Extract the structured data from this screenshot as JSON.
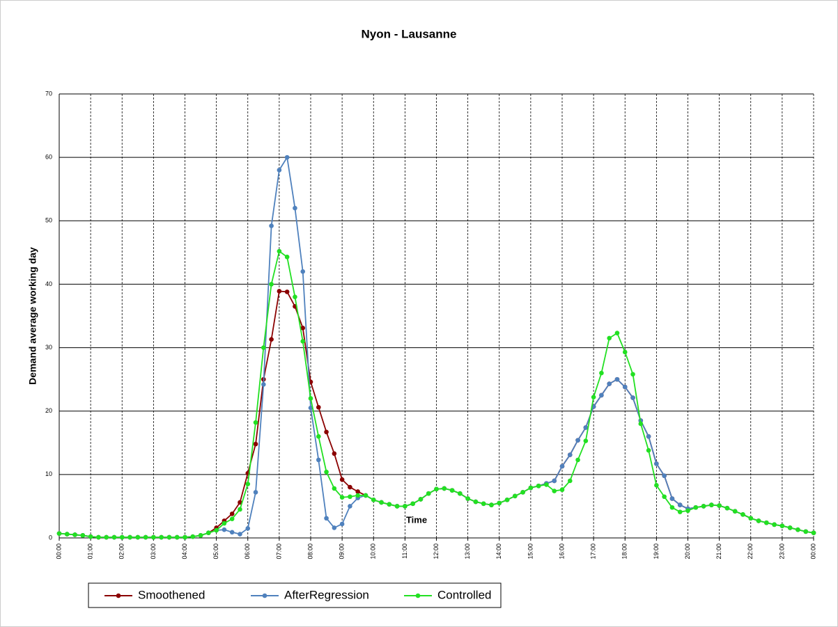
{
  "chart_data": {
    "type": "line",
    "title": "Nyon - Lausanne",
    "x_label": "Time",
    "y_label": "Demand  average working day",
    "categories": [
      "00:00",
      null,
      null,
      null,
      "01:00",
      null,
      null,
      null,
      "02:00",
      null,
      null,
      null,
      "03:00",
      null,
      null,
      null,
      "04:00",
      null,
      null,
      null,
      "05:00",
      null,
      null,
      null,
      "06:00",
      null,
      null,
      null,
      "07:00",
      null,
      null,
      null,
      "08:00",
      null,
      null,
      null,
      "09:00",
      null,
      null,
      null,
      "10:00",
      null,
      null,
      null,
      "11:00",
      null,
      null,
      null,
      "12:00",
      null,
      null,
      null,
      "13:00",
      null,
      null,
      null,
      "14:00",
      null,
      null,
      null,
      "15:00",
      null,
      null,
      null,
      "16:00",
      null,
      null,
      null,
      "17:00",
      null,
      null,
      null,
      "18:00",
      null,
      null,
      null,
      "19:00",
      null,
      null,
      null,
      "20:00",
      null,
      null,
      null,
      "21:00",
      null,
      null,
      null,
      "22:00",
      null,
      null,
      null,
      "23:00",
      null,
      null,
      null,
      "00:00"
    ],
    "series": [
      {
        "name": "Smoothened",
        "color": "#8b0000",
        "values": [
          0.7,
          0.6,
          0.5,
          0.4,
          0.2,
          0.1,
          0.1,
          0.1,
          0.1,
          0.1,
          0.1,
          0.1,
          0.1,
          0.1,
          0.1,
          0.1,
          0.1,
          0.2,
          0.4,
          0.8,
          1.6,
          2.7,
          3.8,
          5.6,
          10.2,
          14.8,
          25,
          31.3,
          38.9,
          38.8,
          36.5,
          33.1,
          24.6,
          20.6,
          16.7,
          13.3,
          9.2,
          8,
          7.3,
          6.7,
          6.0,
          5.6,
          5.3,
          5.0,
          5.0,
          5.4,
          6.1,
          7.0,
          7.7,
          7.8,
          7.5,
          7.0,
          6.2,
          5.7,
          5.4,
          5.2,
          5.5,
          6.0,
          6.6,
          7.2,
          7.9,
          8.2,
          8.6,
          9.0,
          11.3,
          13.1,
          15.4,
          17.4,
          20.7,
          22.5,
          24.3,
          25.0,
          23.8,
          22.1,
          18.5,
          16.0,
          11.7,
          9.8,
          6.2,
          5.2,
          4.6,
          4.8,
          5.0,
          5.2,
          5.1,
          4.7,
          4.2,
          3.7,
          3.1,
          2.7,
          2.4,
          2.1,
          1.9,
          1.6,
          1.3,
          1.0,
          0.8
        ]
      },
      {
        "name": "AfterRegression",
        "color": "#4f81bd",
        "values": [
          0.7,
          0.6,
          0.5,
          0.4,
          0.2,
          0.1,
          0.1,
          0.1,
          0.1,
          0.1,
          0.1,
          0.1,
          0.1,
          0.1,
          0.1,
          0.1,
          0.1,
          0.2,
          0.4,
          0.8,
          1.2,
          1.3,
          0.9,
          0.6,
          1.5,
          7.2,
          24.2,
          49.2,
          58,
          60,
          52,
          42,
          20.5,
          12.3,
          3.1,
          1.6,
          2.2,
          5.0,
          6.3,
          6.7,
          6.0,
          5.6,
          5.3,
          5.0,
          5.0,
          5.4,
          6.1,
          7.0,
          7.7,
          7.8,
          7.5,
          7.0,
          6.2,
          5.7,
          5.4,
          5.2,
          5.5,
          6.0,
          6.6,
          7.2,
          7.9,
          8.2,
          8.6,
          9.0,
          11.3,
          13.1,
          15.4,
          17.4,
          20.7,
          22.5,
          24.3,
          25.0,
          23.8,
          22.1,
          18.5,
          16.0,
          11.7,
          9.8,
          6.2,
          5.2,
          4.6,
          4.8,
          5.0,
          5.2,
          5.1,
          4.7,
          4.2,
          3.7,
          3.1,
          2.7,
          2.4,
          2.1,
          1.9,
          1.6,
          1.3,
          1.0,
          0.8
        ]
      },
      {
        "name": "Controlled",
        "color": "#22e022",
        "values": [
          0.7,
          0.6,
          0.5,
          0.4,
          0.2,
          0.1,
          0.1,
          0.1,
          0.1,
          0.1,
          0.1,
          0.1,
          0.1,
          0.1,
          0.1,
          0.1,
          0.1,
          0.2,
          0.4,
          0.8,
          1.2,
          2.3,
          3.0,
          4.5,
          8.5,
          18.2,
          30,
          40,
          45.2,
          44.3,
          38,
          31,
          22,
          16,
          10.4,
          7.8,
          6.4,
          6.5,
          6.7,
          6.7,
          6.0,
          5.6,
          5.3,
          5.0,
          5.0,
          5.4,
          6.1,
          7.0,
          7.7,
          7.8,
          7.5,
          7.0,
          6.2,
          5.7,
          5.4,
          5.2,
          5.5,
          6.0,
          6.6,
          7.2,
          7.9,
          8.2,
          8.4,
          7.4,
          7.6,
          9.0,
          12.3,
          15.3,
          22.2,
          26,
          31.5,
          32.3,
          29.3,
          25.8,
          18.0,
          13.8,
          8.3,
          6.5,
          4.8,
          4.1,
          4.3,
          4.8,
          5.0,
          5.2,
          5.1,
          4.7,
          4.2,
          3.7,
          3.1,
          2.7,
          2.4,
          2.1,
          1.9,
          1.6,
          1.3,
          1.0,
          0.8
        ]
      }
    ],
    "ylim": [
      0,
      70
    ],
    "yticks": [
      0,
      10,
      20,
      30,
      40,
      50,
      60,
      70
    ],
    "grid": true,
    "legend": "bottom"
  }
}
